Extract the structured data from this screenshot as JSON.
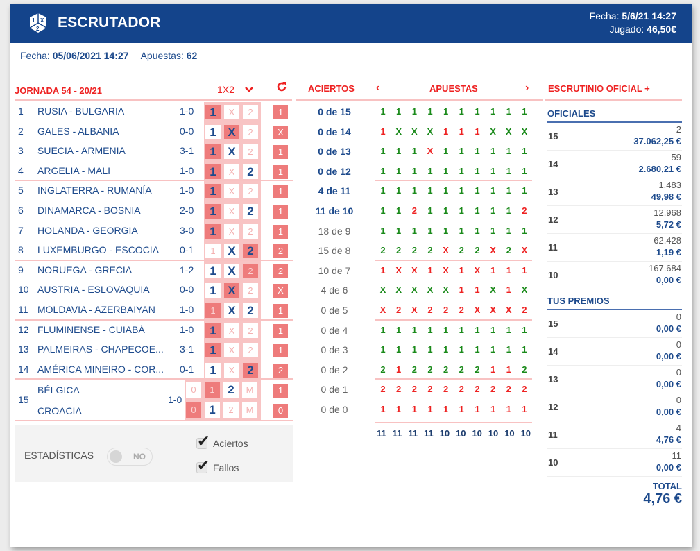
{
  "header": {
    "app_title": "ESCRUTADOR",
    "fecha_label": "Fecha: ",
    "fecha_value": "5/6/21 14:27",
    "jugado_label": "Jugado: ",
    "jugado_value": "46,50€"
  },
  "subbar": {
    "fecha_label": "Fecha: ",
    "fecha_value": "05/06/2021 14:27",
    "apuestas_label": "Apuestas: ",
    "apuestas_value": "62"
  },
  "matches_panel": {
    "title": "JORNADA 54 - 20/21",
    "selector": "1X2",
    "matches": [
      {
        "n": "1",
        "teams": "RUSIA - BULGARIA",
        "score": "1-0",
        "sel": [
          "1"
        ],
        "hit": "1",
        "result": "1"
      },
      {
        "n": "2",
        "teams": "GALES - ALBANIA",
        "score": "0-0",
        "sel": [
          "1",
          "X"
        ],
        "hit": "X",
        "result": "X"
      },
      {
        "n": "3",
        "teams": "SUECIA - ARMENIA",
        "score": "3-1",
        "sel": [
          "1",
          "X"
        ],
        "hit": "1",
        "result": "1"
      },
      {
        "n": "4",
        "teams": "ARGELIA - MALI",
        "score": "1-0",
        "sel": [
          "1",
          "2"
        ],
        "hit": "1",
        "result": "1"
      },
      {
        "n": "5",
        "teams": "INGLATERRA - RUMANÍA",
        "score": "1-0",
        "sel": [
          "1"
        ],
        "hit": "1",
        "result": "1"
      },
      {
        "n": "6",
        "teams": "DINAMARCA - BOSNIA",
        "score": "2-0",
        "sel": [
          "1",
          "2"
        ],
        "hit": "1",
        "result": "1"
      },
      {
        "n": "7",
        "teams": "HOLANDA - GEORGIA",
        "score": "3-0",
        "sel": [
          "1"
        ],
        "hit": "1",
        "result": "1"
      },
      {
        "n": "8",
        "teams": "LUXEMBURGO - ESCOCIA",
        "score": "0-1",
        "sel": [
          "X",
          "2"
        ],
        "hit": "2",
        "result": "2"
      },
      {
        "n": "9",
        "teams": "NORUEGA - GRECIA",
        "score": "1-2",
        "sel": [
          "1",
          "X"
        ],
        "hit": "2",
        "result": "2"
      },
      {
        "n": "10",
        "teams": "AUSTRIA - ESLOVAQUIA",
        "score": "0-0",
        "sel": [
          "1",
          "X"
        ],
        "hit": "X",
        "result": "X"
      },
      {
        "n": "11",
        "teams": "MOLDAVIA - AZERBAIYAN",
        "score": "1-0",
        "sel": [
          "X",
          "2"
        ],
        "hit": "1",
        "result": "1"
      },
      {
        "n": "12",
        "teams": "FLUMINENSE - CUIABÁ",
        "score": "1-0",
        "sel": [
          "1"
        ],
        "hit": "1",
        "result": "1"
      },
      {
        "n": "13",
        "teams": "PALMEIRAS - CHAPECOE...",
        "score": "3-1",
        "sel": [
          "1"
        ],
        "hit": "1",
        "result": "1"
      },
      {
        "n": "14",
        "teams": "AMÉRICA MINEIRO - COR...",
        "score": "0-1",
        "sel": [
          "1",
          "2"
        ],
        "hit": "2",
        "result": "2"
      }
    ],
    "pleno": {
      "n": "15",
      "home": "BÉLGICA",
      "away": "CROACIA",
      "score": "1-0",
      "home_result": "1",
      "away_result": "0"
    },
    "opts": [
      "0",
      "1",
      "2",
      "M"
    ]
  },
  "stats": {
    "label": "ESTADÍSTICAS",
    "toggle": "NO",
    "check1": "Aciertos",
    "check2": "Fallos"
  },
  "aciertos": {
    "title": "ACIERTOS",
    "rows": [
      {
        "t": "0 de 15",
        "bold": true
      },
      {
        "t": "0 de 14",
        "bold": true
      },
      {
        "t": "0 de 13",
        "bold": true
      },
      {
        "t": "0 de 12",
        "bold": true
      },
      {
        "t": "4 de 11",
        "bold": true
      },
      {
        "t": "11 de 10",
        "bold": true
      },
      {
        "t": "18 de 9",
        "bold": false
      },
      {
        "t": "15 de 8",
        "bold": false
      },
      {
        "t": "10 de 7",
        "bold": false
      },
      {
        "t": "4 de 6",
        "bold": false
      },
      {
        "t": "0 de 5",
        "bold": false
      },
      {
        "t": "0 de 4",
        "bold": false
      },
      {
        "t": "0 de 3",
        "bold": false
      },
      {
        "t": "0 de 2",
        "bold": false
      },
      {
        "t": "0 de 1",
        "bold": false
      },
      {
        "t": "0 de 0",
        "bold": false
      }
    ]
  },
  "apuestas": {
    "title": "APUESTAS",
    "prev": "‹",
    "next": "›",
    "grid": [
      [
        "1g",
        "1g",
        "1g",
        "1g",
        "1g",
        "1g",
        "1g",
        "1g",
        "1g",
        "1g"
      ],
      [
        "1r",
        "Xg",
        "Xg",
        "Xg",
        "1r",
        "1r",
        "1r",
        "Xg",
        "Xg",
        "Xg"
      ],
      [
        "1g",
        "1g",
        "1g",
        "Xr",
        "1g",
        "1g",
        "1g",
        "1g",
        "1g",
        "1g"
      ],
      [
        "1g",
        "1g",
        "1g",
        "1g",
        "1g",
        "1g",
        "1g",
        "1g",
        "1g",
        "1g"
      ],
      [
        "1g",
        "1g",
        "1g",
        "1g",
        "1g",
        "1g",
        "1g",
        "1g",
        "1g",
        "1g"
      ],
      [
        "1g",
        "1g",
        "2r",
        "1g",
        "1g",
        "1g",
        "1g",
        "1g",
        "1g",
        "2r"
      ],
      [
        "1g",
        "1g",
        "1g",
        "1g",
        "1g",
        "1g",
        "1g",
        "1g",
        "1g",
        "1g"
      ],
      [
        "2g",
        "2g",
        "2g",
        "2g",
        "Xr",
        "2g",
        "2g",
        "Xr",
        "2g",
        "Xr"
      ],
      [
        "1r",
        "Xr",
        "Xr",
        "1r",
        "Xr",
        "1r",
        "Xr",
        "1r",
        "1r",
        "1r"
      ],
      [
        "Xg",
        "Xg",
        "Xg",
        "Xg",
        "Xg",
        "1r",
        "1r",
        "Xg",
        "1r",
        "Xg"
      ],
      [
        "Xr",
        "2r",
        "Xr",
        "2r",
        "2r",
        "2r",
        "Xr",
        "Xr",
        "Xr",
        "2r"
      ],
      [
        "1g",
        "1g",
        "1g",
        "1g",
        "1g",
        "1g",
        "1g",
        "1g",
        "1g",
        "1g"
      ],
      [
        "1g",
        "1g",
        "1g",
        "1g",
        "1g",
        "1g",
        "1g",
        "1g",
        "1g",
        "1g"
      ],
      [
        "2g",
        "1r",
        "2g",
        "2g",
        "2g",
        "2g",
        "2g",
        "1r",
        "1r",
        "2g"
      ],
      [
        "2r",
        "2r",
        "2r",
        "2r",
        "2r",
        "2r",
        "2r",
        "2r",
        "2r",
        "2r"
      ],
      [
        "1r",
        "1r",
        "1r",
        "1r",
        "1r",
        "1r",
        "1r",
        "1r",
        "1r",
        "1r"
      ]
    ],
    "totals": [
      "11",
      "11",
      "11",
      "11",
      "10",
      "10",
      "10",
      "10",
      "10",
      "10"
    ]
  },
  "escrutinio": {
    "title": "ESCRUTINIO OFICIAL +",
    "oficiales_title": "OFICIALES",
    "oficiales": [
      {
        "cat": "15",
        "count": "2",
        "amount": "37.062,25 €"
      },
      {
        "cat": "14",
        "count": "59",
        "amount": "2.680,21 €"
      },
      {
        "cat": "13",
        "count": "1.483",
        "amount": "49,98 €"
      },
      {
        "cat": "12",
        "count": "12.968",
        "amount": "5,72 €"
      },
      {
        "cat": "11",
        "count": "62.428",
        "amount": "1,19 €"
      },
      {
        "cat": "10",
        "count": "167.684",
        "amount": "0,00 €"
      }
    ],
    "premios_title": "TUS PREMIOS",
    "premios": [
      {
        "cat": "15",
        "count": "0",
        "amount": "0,00 €"
      },
      {
        "cat": "14",
        "count": "0",
        "amount": "0,00 €"
      },
      {
        "cat": "13",
        "count": "0",
        "amount": "0,00 €"
      },
      {
        "cat": "12",
        "count": "0",
        "amount": "0,00 €"
      },
      {
        "cat": "11",
        "count": "4",
        "amount": "4,76 €"
      },
      {
        "cat": "10",
        "count": "11",
        "amount": "0,00 €"
      }
    ],
    "total_label": "TOTAL",
    "total_value": "4,76 €"
  },
  "colors": {
    "brand_blue": "#14448b",
    "accent_red": "#ee2222",
    "hit_fill": "#ee7b7b",
    "win_green": "#1a8a1a"
  }
}
